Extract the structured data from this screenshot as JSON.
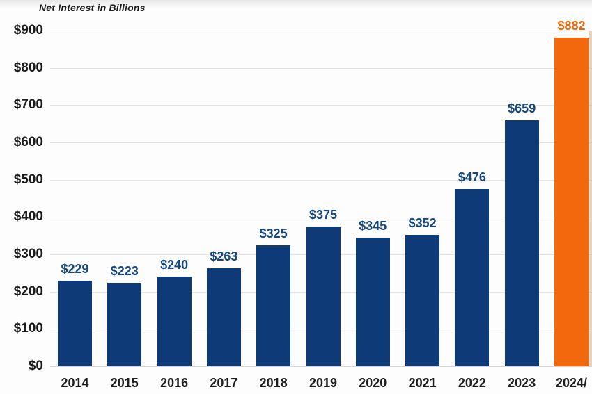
{
  "chart_data": {
    "type": "bar",
    "title": "Net Interest in Billions",
    "categories": [
      "2014",
      "2015",
      "2016",
      "2017",
      "2018",
      "2019",
      "2020",
      "2021",
      "2022",
      "2023",
      "2024/"
    ],
    "values": [
      229,
      223,
      240,
      263,
      325,
      375,
      345,
      352,
      476,
      659,
      882
    ],
    "value_labels": [
      "$229",
      "$223",
      "$240",
      "$263",
      "$325",
      "$375",
      "$345",
      "$352",
      "$476",
      "$659",
      "$882"
    ],
    "ylim": [
      0,
      900
    ],
    "ytick_step": 100,
    "ytick_labels": [
      "$0",
      "$100",
      "$200",
      "$300",
      "$400",
      "$500",
      "$600",
      "$700",
      "$800",
      "$900"
    ],
    "xlabel": "",
    "ylabel": "",
    "grid": "horizontal",
    "legend": "none",
    "colors": {
      "bar": "#0e3b77",
      "bar_highlight": "#f2690d",
      "value_label": "#15477e",
      "value_label_highlight": "#e8670d",
      "axis_text": "#1b1b1b",
      "gridline": "#e4e4e4"
    },
    "highlight_index": 10
  }
}
